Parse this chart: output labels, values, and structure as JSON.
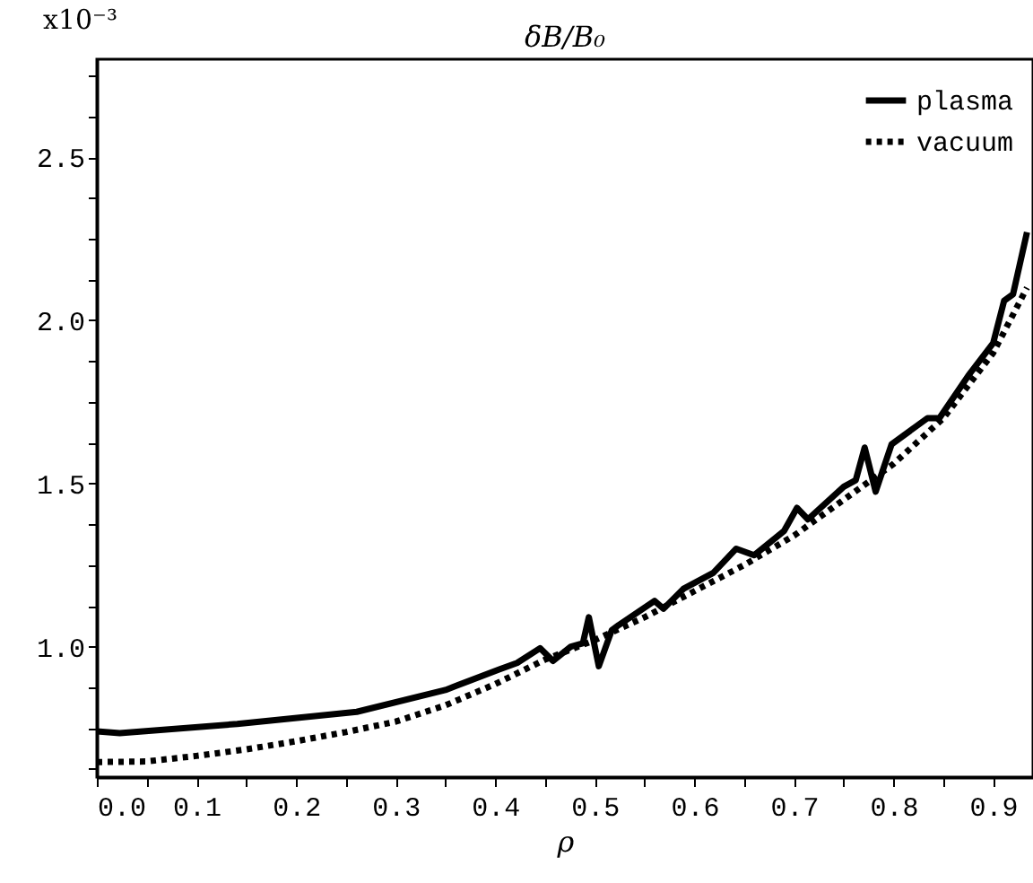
{
  "chart_data": {
    "type": "line",
    "title": "δB/B₀",
    "xlabel": "ρ",
    "annotations": [
      "x10⁻³"
    ],
    "legend": "top right",
    "xlim": [
      0,
      0.94
    ],
    "ylim": [
      0.6,
      2.8
    ],
    "xticks": [
      {
        "value": 0,
        "label": "0.0"
      },
      {
        "value": 0.05,
        "label": null
      },
      {
        "value": 0.1,
        "label": "0.1"
      },
      {
        "value": 0.15,
        "label": null
      },
      {
        "value": 0.2,
        "label": "0.2"
      },
      {
        "value": 0.25,
        "label": null
      },
      {
        "value": 0.3,
        "label": "0.3"
      },
      {
        "value": 0.35,
        "label": null
      },
      {
        "value": 0.4,
        "label": "0.4"
      },
      {
        "value": 0.45,
        "label": null
      },
      {
        "value": 0.5,
        "label": "0.5"
      },
      {
        "value": 0.55,
        "label": null
      },
      {
        "value": 0.6,
        "label": "0.6"
      },
      {
        "value": 0.65,
        "label": null
      },
      {
        "value": 0.7,
        "label": "0.7"
      },
      {
        "value": 0.75,
        "label": null
      },
      {
        "value": 0.8,
        "label": "0.8"
      },
      {
        "value": 0.85,
        "label": null
      },
      {
        "value": 0.9,
        "label": "0.9"
      }
    ],
    "yticks": [
      {
        "value": 0.625,
        "label": null
      },
      {
        "value": 0.75,
        "label": null
      },
      {
        "value": 0.875,
        "label": null
      },
      {
        "value": 1,
        "label": "1.0"
      },
      {
        "value": 1.125,
        "label": null
      },
      {
        "value": 1.25,
        "label": null
      },
      {
        "value": 1.375,
        "label": null
      },
      {
        "value": 1.5,
        "label": "1.5"
      },
      {
        "value": 1.625,
        "label": null
      },
      {
        "value": 1.75,
        "label": null
      },
      {
        "value": 1.875,
        "label": null
      },
      {
        "value": 2,
        "label": "2.0"
      },
      {
        "value": 2.125,
        "label": null
      },
      {
        "value": 2.25,
        "label": null
      },
      {
        "value": 2.375,
        "label": null
      },
      {
        "value": 2.5,
        "label": "2.5"
      },
      {
        "value": 2.625,
        "label": null
      },
      {
        "value": 2.75,
        "label": null
      }
    ],
    "series": [
      {
        "name": "plasma",
        "color": "#000000",
        "line_style": "solid",
        "x": [
          0,
          0.023,
          0.141,
          0.261,
          0.35,
          0.404,
          0.422,
          0.445,
          0.458,
          0.476,
          0.488,
          0.494,
          0.504,
          0.517,
          0.524,
          0.56,
          0.569,
          0.589,
          0.619,
          0.642,
          0.66,
          0.69,
          0.703,
          0.714,
          0.75,
          0.762,
          0.771,
          0.782,
          0.798,
          0.834,
          0.846,
          0.875,
          0.9,
          0.911,
          0.92,
          0.934
        ],
        "values": [
          0.74,
          0.735,
          0.763,
          0.8,
          0.867,
          0.93,
          0.95,
          0.995,
          0.956,
          1.0,
          1.01,
          1.09,
          0.94,
          1.05,
          1.066,
          1.14,
          1.116,
          1.177,
          1.226,
          1.3,
          1.28,
          1.354,
          1.425,
          1.39,
          1.49,
          1.51,
          1.61,
          1.475,
          1.62,
          1.7,
          1.7,
          1.83,
          1.93,
          2.06,
          2.08,
          2.27
        ]
      },
      {
        "name": "vacuum",
        "color": "#000000",
        "line_style": "dotted",
        "x": [
          0,
          0.05,
          0.1,
          0.15,
          0.2,
          0.25,
          0.3,
          0.35,
          0.4,
          0.45,
          0.5,
          0.55,
          0.6,
          0.65,
          0.7,
          0.75,
          0.8,
          0.85,
          0.9,
          0.934
        ],
        "values": [
          0.646,
          0.648,
          0.665,
          0.685,
          0.71,
          0.738,
          0.77,
          0.82,
          0.885,
          0.96,
          1.02,
          1.09,
          1.17,
          1.25,
          1.34,
          1.45,
          1.56,
          1.7,
          1.9,
          2.1
        ]
      }
    ]
  }
}
